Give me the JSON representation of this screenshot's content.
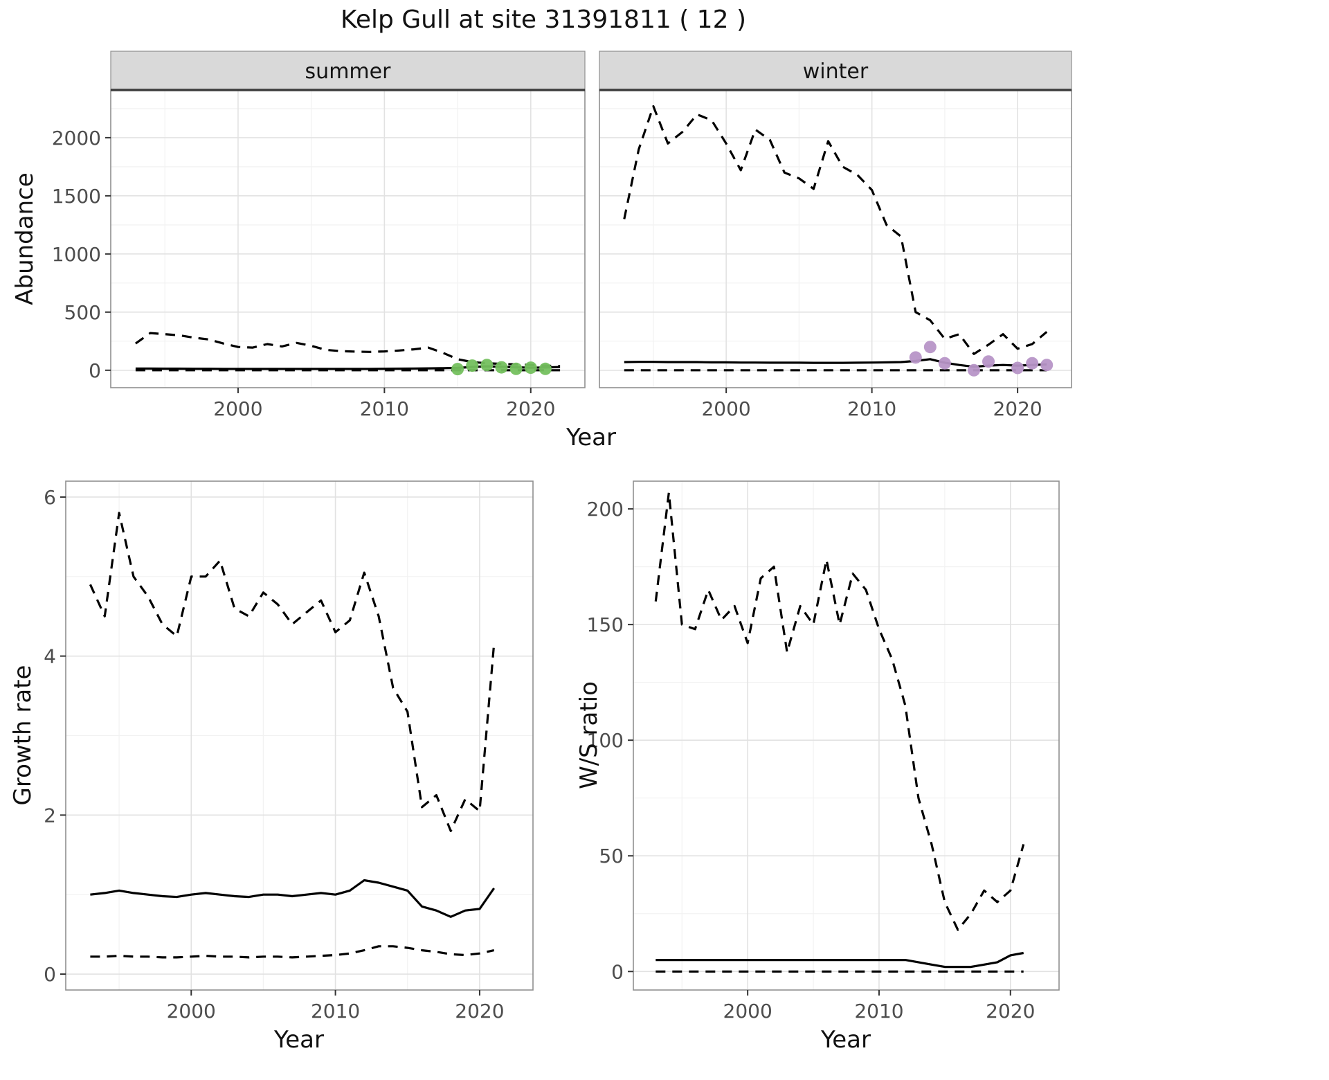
{
  "title": "Kelp Gull at site 31391811 ( 12 )",
  "colors": {
    "median_line": "#000000",
    "ci_line": "#000000",
    "summer_points": "#74c05e",
    "winter_points": "#b795c7"
  },
  "chart_data": [
    {
      "id": "abundance_summer",
      "type": "line",
      "facet": "summer",
      "xlabel": "Year",
      "ylabel": "Abundance",
      "xlim": [
        1991.3,
        2023.7
      ],
      "ylim": [
        -150,
        2410
      ],
      "xticks": [
        2000,
        2010,
        2020
      ],
      "yticks": [
        0,
        500,
        1000,
        1500,
        2000
      ],
      "x": [
        1993,
        1994,
        1995,
        1996,
        1997,
        1998,
        1999,
        2000,
        2001,
        2002,
        2003,
        2004,
        2005,
        2006,
        2007,
        2008,
        2009,
        2010,
        2011,
        2012,
        2013,
        2014,
        2015,
        2016,
        2017,
        2018,
        2019,
        2020,
        2021,
        2022
      ],
      "series": [
        {
          "name": "upper_ci",
          "style": "dashed",
          "values": [
            230,
            320,
            310,
            300,
            280,
            265,
            230,
            200,
            195,
            225,
            205,
            235,
            210,
            175,
            165,
            160,
            158,
            162,
            170,
            180,
            195,
            150,
            95,
            70,
            60,
            55,
            50,
            45,
            40,
            35
          ]
        },
        {
          "name": "lower_ci",
          "style": "dashed",
          "values": [
            0,
            0,
            0,
            0,
            0,
            0,
            0,
            0,
            0,
            0,
            0,
            0,
            0,
            0,
            0,
            0,
            0,
            0,
            0,
            0,
            0,
            0,
            0,
            0,
            0,
            0,
            0,
            0,
            0,
            0
          ]
        },
        {
          "name": "median",
          "style": "solid",
          "values": [
            15,
            15,
            14,
            14,
            13,
            13,
            12,
            12,
            12,
            12,
            12,
            12,
            12,
            12,
            12,
            12,
            12,
            13,
            14,
            15,
            16,
            18,
            20,
            28,
            34,
            30,
            25,
            22,
            24,
            28
          ]
        }
      ],
      "points": {
        "name": "observed_counts",
        "color": "#74c05e",
        "x": [
          2015,
          2016,
          2017,
          2018,
          2019,
          2020,
          2021
        ],
        "y": [
          10,
          40,
          45,
          25,
          12,
          22,
          12
        ]
      }
    },
    {
      "id": "abundance_winter",
      "type": "line",
      "facet": "winter",
      "xlabel": "Year",
      "ylabel": "Abundance",
      "xlim": [
        1991.3,
        2023.7
      ],
      "ylim": [
        -150,
        2410
      ],
      "xticks": [
        2000,
        2010,
        2020
      ],
      "yticks": [
        0,
        500,
        1000,
        1500,
        2000
      ],
      "x": [
        1993,
        1994,
        1995,
        1996,
        1997,
        1998,
        1999,
        2000,
        2001,
        2002,
        2003,
        2004,
        2005,
        2006,
        2007,
        2008,
        2009,
        2010,
        2011,
        2012,
        2013,
        2014,
        2015,
        2016,
        2017,
        2018,
        2019,
        2020,
        2021,
        2022
      ],
      "series": [
        {
          "name": "upper_ci",
          "style": "dashed",
          "values": [
            1300,
            1900,
            2270,
            1950,
            2050,
            2200,
            2150,
            1950,
            1720,
            2070,
            1980,
            1700,
            1650,
            1560,
            1970,
            1750,
            1680,
            1550,
            1250,
            1150,
            500,
            430,
            270,
            310,
            140,
            220,
            310,
            185,
            225,
            330
          ]
        },
        {
          "name": "lower_ci",
          "style": "dashed",
          "values": [
            0,
            0,
            0,
            0,
            0,
            0,
            0,
            0,
            0,
            0,
            0,
            0,
            0,
            0,
            0,
            0,
            0,
            0,
            0,
            0,
            0,
            0,
            0,
            0,
            0,
            0,
            0,
            0,
            0,
            0
          ]
        },
        {
          "name": "median",
          "style": "solid",
          "values": [
            70,
            72,
            72,
            70,
            70,
            70,
            68,
            68,
            66,
            66,
            65,
            65,
            65,
            64,
            64,
            64,
            65,
            66,
            68,
            70,
            80,
            95,
            65,
            45,
            30,
            40,
            45,
            40,
            45,
            50
          ]
        }
      ],
      "points": {
        "name": "observed_counts",
        "color": "#b795c7",
        "x": [
          2013,
          2014,
          2015,
          2017,
          2018,
          2020,
          2021,
          2022
        ],
        "y": [
          110,
          200,
          60,
          0,
          75,
          20,
          60,
          45
        ]
      }
    },
    {
      "id": "growth_rate",
      "type": "line",
      "facet": null,
      "xlabel": "Year",
      "ylabel": "Growth rate",
      "xlim": [
        1991.3,
        2023.7
      ],
      "ylim": [
        -0.2,
        6.2
      ],
      "xticks": [
        2000,
        2010,
        2020
      ],
      "yticks": [
        0,
        2,
        4,
        6
      ],
      "x": [
        1993,
        1994,
        1995,
        1996,
        1997,
        1998,
        1999,
        2000,
        2001,
        2002,
        2003,
        2004,
        2005,
        2006,
        2007,
        2008,
        2009,
        2010,
        2011,
        2012,
        2013,
        2014,
        2015,
        2016,
        2017,
        2018,
        2019,
        2020,
        2021
      ],
      "series": [
        {
          "name": "upper_ci",
          "style": "dashed",
          "values": [
            4.9,
            4.5,
            5.8,
            5.0,
            4.75,
            4.4,
            4.25,
            5.0,
            5.0,
            5.2,
            4.6,
            4.5,
            4.8,
            4.65,
            4.4,
            4.55,
            4.7,
            4.3,
            4.45,
            5.05,
            4.5,
            3.6,
            3.3,
            2.1,
            2.25,
            1.8,
            2.2,
            2.05,
            4.15
          ]
        },
        {
          "name": "lower_ci",
          "style": "dashed",
          "values": [
            0.22,
            0.22,
            0.23,
            0.22,
            0.22,
            0.21,
            0.21,
            0.22,
            0.23,
            0.22,
            0.22,
            0.21,
            0.22,
            0.22,
            0.21,
            0.22,
            0.23,
            0.24,
            0.26,
            0.3,
            0.35,
            0.35,
            0.33,
            0.3,
            0.28,
            0.25,
            0.24,
            0.26,
            0.3
          ]
        },
        {
          "name": "median",
          "style": "solid",
          "values": [
            1.0,
            1.02,
            1.05,
            1.02,
            1.0,
            0.98,
            0.97,
            1.0,
            1.02,
            1.0,
            0.98,
            0.97,
            1.0,
            1.0,
            0.98,
            1.0,
            1.02,
            1.0,
            1.05,
            1.18,
            1.15,
            1.1,
            1.05,
            0.85,
            0.8,
            0.72,
            0.8,
            0.82,
            1.08
          ]
        }
      ],
      "points": null
    },
    {
      "id": "ws_ratio",
      "type": "line",
      "facet": null,
      "xlabel": "Year",
      "ylabel": "W/S ratio",
      "xlim": [
        1991.3,
        2023.7
      ],
      "ylim": [
        -8,
        212
      ],
      "xticks": [
        2000,
        2010,
        2020
      ],
      "yticks": [
        0,
        50,
        100,
        150,
        200
      ],
      "x": [
        1993,
        1994,
        1995,
        1996,
        1997,
        1998,
        1999,
        2000,
        2001,
        2002,
        2003,
        2004,
        2005,
        2006,
        2007,
        2008,
        2009,
        2010,
        2011,
        2012,
        2013,
        2014,
        2015,
        2016,
        2017,
        2018,
        2019,
        2020,
        2021
      ],
      "series": [
        {
          "name": "upper_ci",
          "style": "dashed",
          "values": [
            160,
            207,
            150,
            148,
            165,
            152,
            158,
            142,
            170,
            175,
            138,
            158,
            150,
            178,
            150,
            172,
            165,
            148,
            135,
            115,
            75,
            55,
            30,
            18,
            25,
            35,
            30,
            35,
            55
          ]
        },
        {
          "name": "lower_ci",
          "style": "dashed",
          "values": [
            0,
            0,
            0,
            0,
            0,
            0,
            0,
            0,
            0,
            0,
            0,
            0,
            0,
            0,
            0,
            0,
            0,
            0,
            0,
            0,
            0,
            0,
            0,
            0,
            0,
            0,
            0,
            0,
            0
          ]
        },
        {
          "name": "median",
          "style": "solid",
          "values": [
            5,
            5,
            5,
            5,
            5,
            5,
            5,
            5,
            5,
            5,
            5,
            5,
            5,
            5,
            5,
            5,
            5,
            5,
            5,
            5,
            4,
            3,
            2,
            2,
            2,
            3,
            4,
            7,
            8
          ]
        }
      ],
      "points": null
    }
  ]
}
